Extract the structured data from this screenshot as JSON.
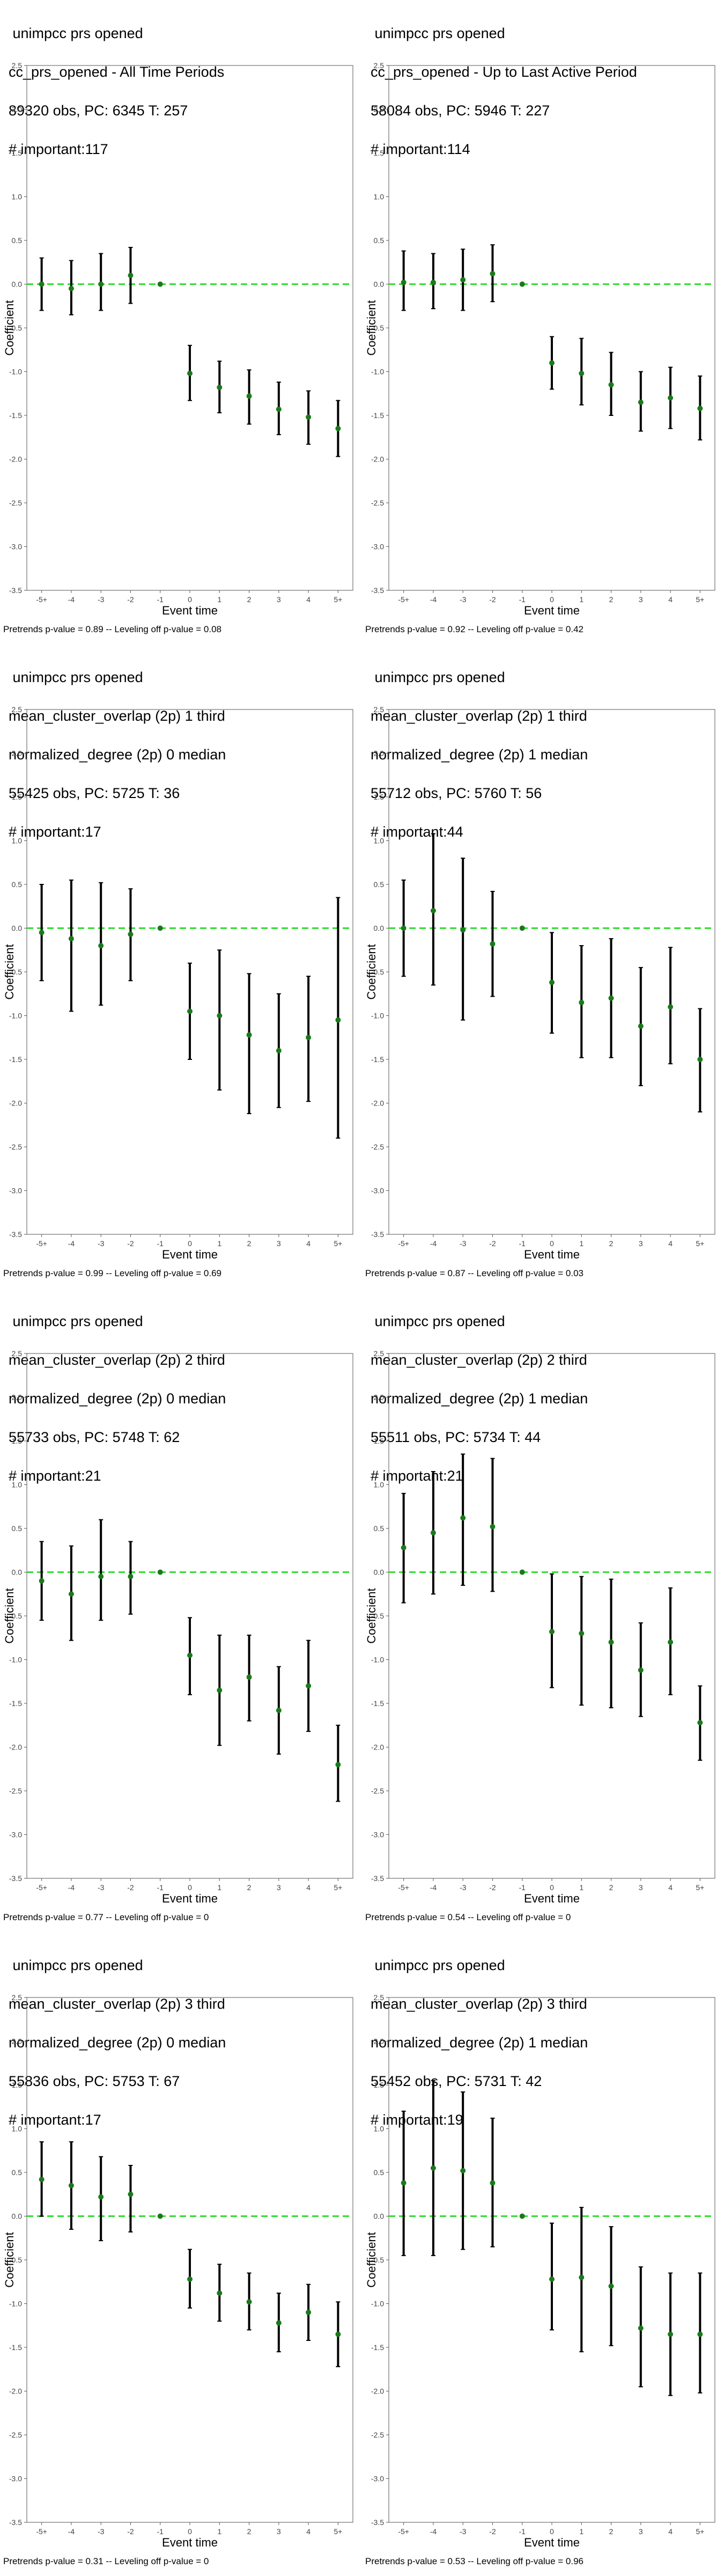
{
  "chart_data": [
    {
      "type": "scatter",
      "title_lines": [
        " unimpcc prs opened",
        "cc_prs_opened - All Time Periods",
        "89320 obs, PC: 6345 T: 257",
        "# important:117"
      ],
      "xlabel": "Event time",
      "ylabel": "Coefficient",
      "categories": [
        "-5+",
        "-4",
        "-3",
        "-2",
        "-1",
        "0",
        "1",
        "2",
        "3",
        "4",
        "5+"
      ],
      "ylim": [
        -3.5,
        2.5
      ],
      "yticks": [
        "2.5",
        "2.0",
        "1.5",
        "1.0",
        "0.5",
        "0.0",
        "-0.5",
        "-1.0",
        "-1.5",
        "-2.0",
        "-2.5",
        "-3.0",
        "-3.5"
      ],
      "estimates": [
        0.0,
        -0.05,
        0.0,
        0.1,
        0.0,
        -1.02,
        -1.18,
        -1.28,
        -1.43,
        -1.52,
        -1.65
      ],
      "ci_low": [
        -0.3,
        -0.35,
        -0.3,
        -0.22,
        0.0,
        -1.33,
        -1.47,
        -1.6,
        -1.72,
        -1.83,
        -1.97
      ],
      "ci_high": [
        0.3,
        0.27,
        0.35,
        0.42,
        0.0,
        -0.7,
        -0.88,
        -0.98,
        -1.12,
        -1.22,
        -1.33
      ],
      "caption": "Pretrends p-value = 0.89 -- Leveling off p-value = 0.08"
    },
    {
      "type": "scatter",
      "title_lines": [
        " unimpcc prs opened",
        "cc_prs_opened - Up to Last Active Period",
        "58084 obs, PC: 5946 T: 227",
        "# important:114"
      ],
      "xlabel": "Event time",
      "ylabel": "Coefficient",
      "categories": [
        "-5+",
        "-4",
        "-3",
        "-2",
        "-1",
        "0",
        "1",
        "2",
        "3",
        "4",
        "5+"
      ],
      "ylim": [
        -3.5,
        2.5
      ],
      "yticks": [
        "2.5",
        "2.0",
        "1.5",
        "1.0",
        "0.5",
        "0.0",
        "-0.5",
        "-1.0",
        "-1.5",
        "-2.0",
        "-2.5",
        "-3.0",
        "-3.5"
      ],
      "estimates": [
        0.02,
        0.02,
        0.05,
        0.12,
        0.0,
        -0.9,
        -1.02,
        -1.15,
        -1.35,
        -1.3,
        -1.42
      ],
      "ci_low": [
        -0.3,
        -0.28,
        -0.3,
        -0.2,
        0.0,
        -1.2,
        -1.38,
        -1.5,
        -1.68,
        -1.65,
        -1.78
      ],
      "ci_high": [
        0.38,
        0.35,
        0.4,
        0.45,
        0.0,
        -0.6,
        -0.62,
        -0.78,
        -1.0,
        -0.95,
        -1.05
      ],
      "caption": "Pretrends p-value = 0.92 -- Leveling off p-value = 0.42"
    },
    {
      "type": "scatter",
      "title_lines": [
        " unimpcc prs opened",
        "mean_cluster_overlap (2p) 1 third",
        "normalized_degree (2p) 0 median",
        "55425 obs, PC: 5725 T: 36",
        "# important:17"
      ],
      "xlabel": "Event time",
      "ylabel": "Coefficient",
      "categories": [
        "-5+",
        "-4",
        "-3",
        "-2",
        "-1",
        "0",
        "1",
        "2",
        "3",
        "4",
        "5+"
      ],
      "ylim": [
        -3.5,
        2.5
      ],
      "yticks": [
        "2.5",
        "2.0",
        "1.5",
        "1.0",
        "0.5",
        "0.0",
        "-0.5",
        "-1.0",
        "-1.5",
        "-2.0",
        "-2.5",
        "-3.0",
        "-3.5"
      ],
      "estimates": [
        -0.05,
        -0.12,
        -0.2,
        -0.07,
        0.0,
        -0.95,
        -1.0,
        -1.22,
        -1.4,
        -1.25,
        -1.05
      ],
      "ci_low": [
        -0.6,
        -0.95,
        -0.88,
        -0.6,
        0.0,
        -1.5,
        -1.85,
        -2.12,
        -2.05,
        -1.98,
        -2.4
      ],
      "ci_high": [
        0.5,
        0.55,
        0.52,
        0.45,
        0.0,
        -0.4,
        -0.25,
        -0.52,
        -0.75,
        -0.55,
        0.35
      ],
      "caption": "Pretrends p-value = 0.99 -- Leveling off p-value = 0.69"
    },
    {
      "type": "scatter",
      "title_lines": [
        " unimpcc prs opened",
        "mean_cluster_overlap (2p) 1 third",
        "normalized_degree (2p) 1 median",
        "55712 obs, PC: 5760 T: 56",
        "# important:44"
      ],
      "xlabel": "Event time",
      "ylabel": "Coefficient",
      "categories": [
        "-5+",
        "-4",
        "-3",
        "-2",
        "-1",
        "0",
        "1",
        "2",
        "3",
        "4",
        "5+"
      ],
      "ylim": [
        -3.5,
        2.5
      ],
      "yticks": [
        "2.5",
        "2.0",
        "1.5",
        "1.0",
        "0.5",
        "0.0",
        "-0.5",
        "-1.0",
        "-1.5",
        "-2.0",
        "-2.5",
        "-3.0",
        "-3.5"
      ],
      "estimates": [
        0.0,
        0.2,
        -0.02,
        -0.18,
        0.0,
        -0.62,
        -0.85,
        -0.8,
        -1.12,
        -0.9,
        -1.5
      ],
      "ci_low": [
        -0.55,
        -0.65,
        -1.05,
        -0.78,
        0.0,
        -1.2,
        -1.48,
        -1.48,
        -1.8,
        -1.55,
        -2.1
      ],
      "ci_high": [
        0.55,
        1.08,
        0.8,
        0.42,
        0.0,
        -0.05,
        -0.2,
        -0.12,
        -0.45,
        -0.22,
        -0.92
      ],
      "caption": "Pretrends p-value = 0.87 -- Leveling off p-value = 0.03"
    },
    {
      "type": "scatter",
      "title_lines": [
        " unimpcc prs opened",
        "mean_cluster_overlap (2p) 2 third",
        "normalized_degree (2p) 0 median",
        "55733 obs, PC: 5748 T: 62",
        "# important:21"
      ],
      "xlabel": "Event time",
      "ylabel": "Coefficient",
      "categories": [
        "-5+",
        "-4",
        "-3",
        "-2",
        "-1",
        "0",
        "1",
        "2",
        "3",
        "4",
        "5+"
      ],
      "ylim": [
        -3.5,
        2.5
      ],
      "yticks": [
        "2.5",
        "2.0",
        "1.5",
        "1.0",
        "0.5",
        "0.0",
        "-0.5",
        "-1.0",
        "-1.5",
        "-2.0",
        "-2.5",
        "-3.0",
        "-3.5"
      ],
      "estimates": [
        -0.1,
        -0.25,
        -0.05,
        -0.05,
        0.0,
        -0.95,
        -1.35,
        -1.2,
        -1.58,
        -1.3,
        -2.2
      ],
      "ci_low": [
        -0.55,
        -0.78,
        -0.55,
        -0.48,
        0.0,
        -1.4,
        -1.98,
        -1.7,
        -2.08,
        -1.82,
        -2.62
      ],
      "ci_high": [
        0.35,
        0.3,
        0.6,
        0.35,
        0.0,
        -0.52,
        -0.72,
        -0.72,
        -1.08,
        -0.78,
        -1.75
      ],
      "caption": "Pretrends p-value = 0.77 -- Leveling off p-value = 0"
    },
    {
      "type": "scatter",
      "title_lines": [
        " unimpcc prs opened",
        "mean_cluster_overlap (2p) 2 third",
        "normalized_degree (2p) 1 median",
        "55511 obs, PC: 5734 T: 44",
        "# important:21"
      ],
      "xlabel": "Event time",
      "ylabel": "Coefficient",
      "categories": [
        "-5+",
        "-4",
        "-3",
        "-2",
        "-1",
        "0",
        "1",
        "2",
        "3",
        "4",
        "5+"
      ],
      "ylim": [
        -3.5,
        2.5
      ],
      "yticks": [
        "2.5",
        "2.0",
        "1.5",
        "1.0",
        "0.5",
        "0.0",
        "-0.5",
        "-1.0",
        "-1.5",
        "-2.0",
        "-2.5",
        "-3.0",
        "-3.5"
      ],
      "estimates": [
        0.28,
        0.45,
        0.62,
        0.52,
        0.0,
        -0.68,
        -0.7,
        -0.8,
        -1.12,
        -0.8,
        -1.72
      ],
      "ci_low": [
        -0.35,
        -0.25,
        -0.15,
        -0.22,
        0.0,
        -1.32,
        -1.52,
        -1.55,
        -1.65,
        -1.4,
        -2.15
      ],
      "ci_high": [
        0.9,
        1.15,
        1.35,
        1.3,
        0.0,
        -0.02,
        -0.05,
        -0.08,
        -0.58,
        -0.18,
        -1.3
      ],
      "caption": "Pretrends p-value = 0.54 -- Leveling off p-value = 0"
    },
    {
      "type": "scatter",
      "title_lines": [
        " unimpcc prs opened",
        "mean_cluster_overlap (2p) 3 third",
        "normalized_degree (2p) 0 median",
        "55836 obs, PC: 5753 T: 67",
        "# important:17"
      ],
      "xlabel": "Event time",
      "ylabel": "Coefficient",
      "categories": [
        "-5+",
        "-4",
        "-3",
        "-2",
        "-1",
        "0",
        "1",
        "2",
        "3",
        "4",
        "5+"
      ],
      "ylim": [
        -3.5,
        2.5
      ],
      "yticks": [
        "2.5",
        "2.0",
        "1.5",
        "1.0",
        "0.5",
        "0.0",
        "-0.5",
        "-1.0",
        "-1.5",
        "-2.0",
        "-2.5",
        "-3.0",
        "-3.5"
      ],
      "estimates": [
        0.42,
        0.35,
        0.22,
        0.25,
        0.0,
        -0.72,
        -0.88,
        -0.98,
        -1.22,
        -1.1,
        -1.35
      ],
      "ci_low": [
        0.0,
        -0.15,
        -0.28,
        -0.18,
        0.0,
        -1.05,
        -1.2,
        -1.3,
        -1.55,
        -1.42,
        -1.72
      ],
      "ci_high": [
        0.85,
        0.85,
        0.68,
        0.58,
        0.0,
        -0.38,
        -0.55,
        -0.65,
        -0.88,
        -0.78,
        -0.98
      ],
      "caption": "Pretrends p-value = 0.31 -- Leveling off p-value = 0"
    },
    {
      "type": "scatter",
      "title_lines": [
        " unimpcc prs opened",
        "mean_cluster_overlap (2p) 3 third",
        "normalized_degree (2p) 1 median",
        "55452 obs, PC: 5731 T: 42",
        "# important:19"
      ],
      "xlabel": "Event time",
      "ylabel": "Coefficient",
      "categories": [
        "-5+",
        "-4",
        "-3",
        "-2",
        "-1",
        "0",
        "1",
        "2",
        "3",
        "4",
        "5+"
      ],
      "ylim": [
        -3.5,
        2.5
      ],
      "yticks": [
        "2.5",
        "2.0",
        "1.5",
        "1.0",
        "0.5",
        "0.0",
        "-0.5",
        "-1.0",
        "-1.5",
        "-2.0",
        "-2.5",
        "-3.0",
        "-3.5"
      ],
      "estimates": [
        0.38,
        0.55,
        0.52,
        0.38,
        0.0,
        -0.72,
        -0.7,
        -0.8,
        -1.28,
        -1.35,
        -1.35
      ],
      "ci_low": [
        -0.45,
        -0.45,
        -0.38,
        -0.35,
        0.0,
        -1.3,
        -1.55,
        -1.48,
        -1.95,
        -2.05,
        -2.02
      ],
      "ci_high": [
        1.2,
        1.55,
        1.42,
        1.12,
        0.0,
        -0.08,
        0.1,
        -0.12,
        -0.58,
        -0.65,
        -0.65
      ],
      "caption": "Pretrends p-value = 0.53 -- Leveling off p-value = 0.96"
    }
  ],
  "colors": {
    "point": "#1a7a1a",
    "zero_line": "#33dd33",
    "errorbar": "#000000",
    "axis": "#555555"
  }
}
